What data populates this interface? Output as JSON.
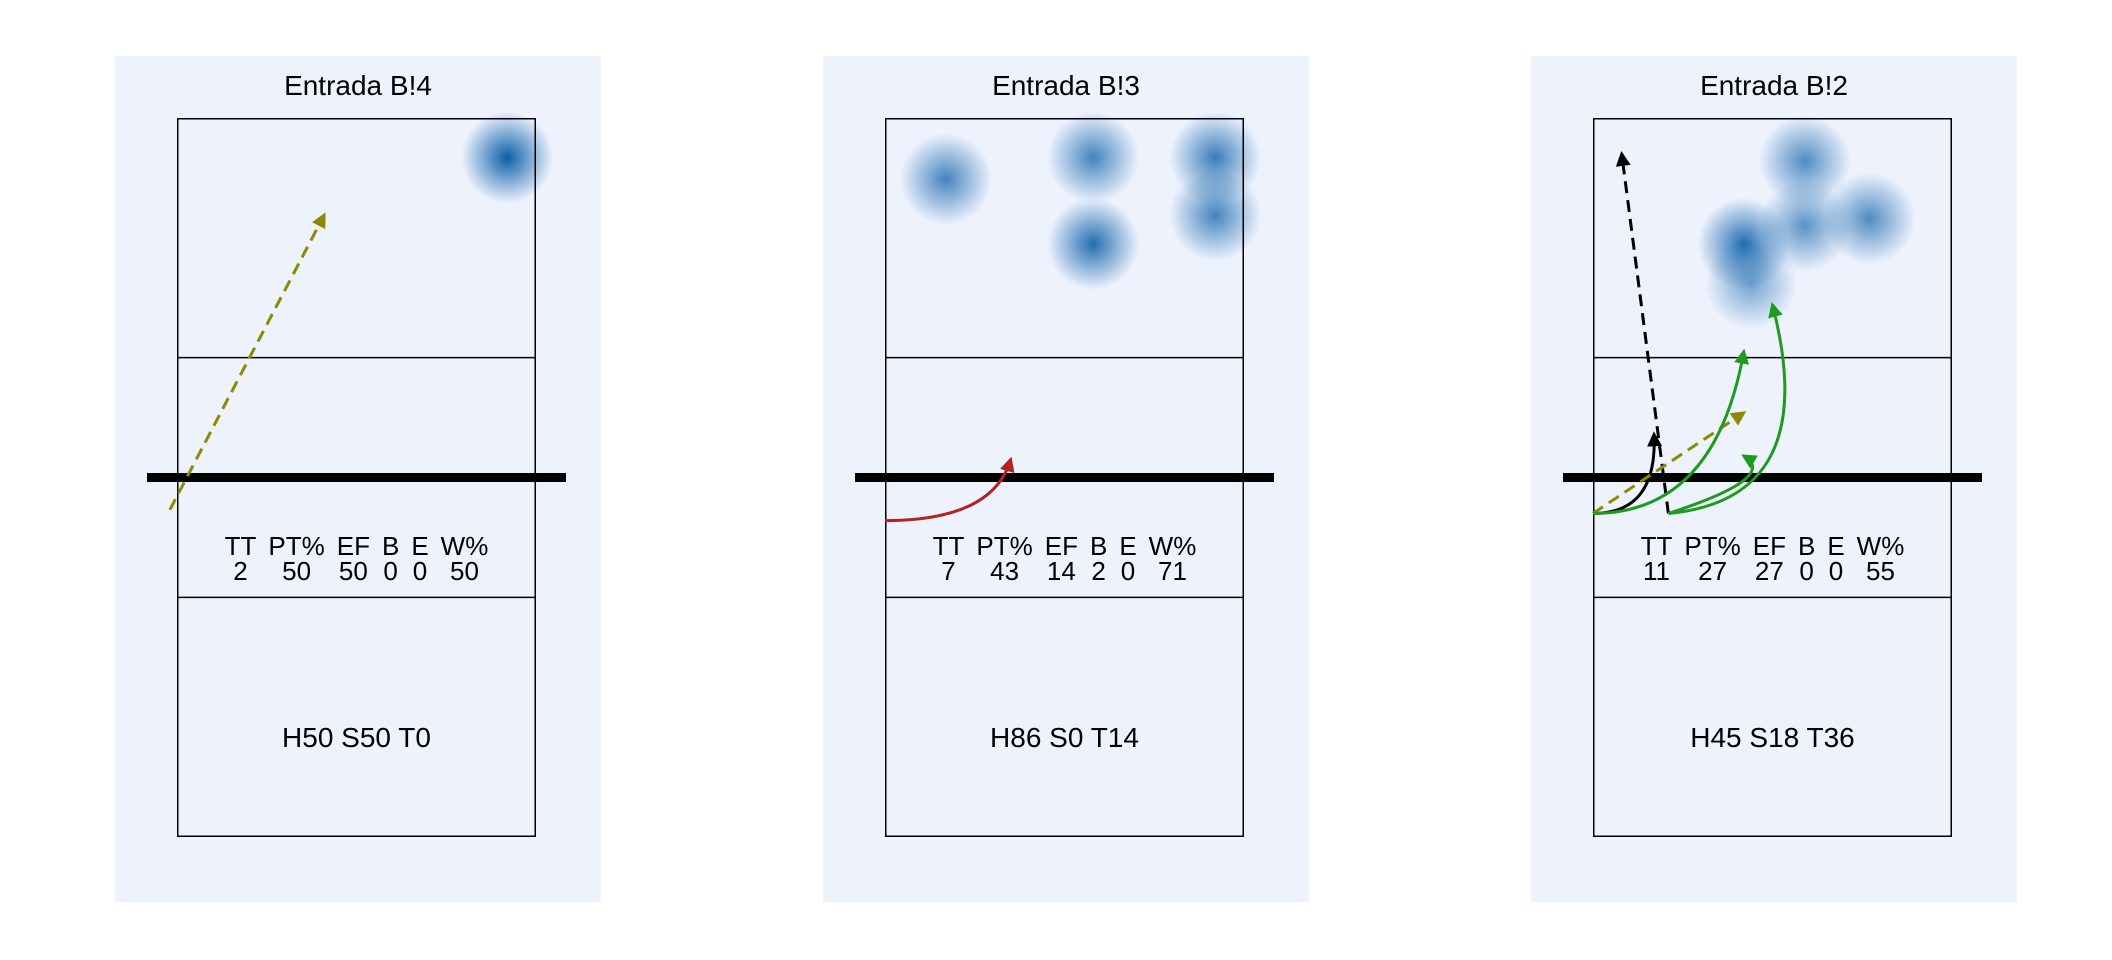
{
  "colors": {
    "panel_bg": "#edf2fd",
    "heat": "#0b5fa8",
    "arrow_olive": "#8b8b00",
    "arrow_red": "#b22222",
    "arrow_green": "#1e9a1e",
    "arrow_black": "#000000"
  },
  "stat_headers": [
    "TT",
    "PT%",
    "EF",
    "B",
    "E",
    "W%"
  ],
  "panels": [
    {
      "title": "Entrada B!4",
      "stats": [
        "2",
        "50",
        "50",
        "0",
        "0",
        "50"
      ],
      "summary": "H50 S50 T0",
      "heat": [
        [
          0.92,
          0.11,
          1.0
        ]
      ],
      "arrows": [
        {
          "color": "olive",
          "dashed": true,
          "pts": [
            [
              -0.02,
              1.09
            ],
            [
              0.41,
              0.27
            ]
          ]
        }
      ]
    },
    {
      "title": "Entrada B!3",
      "stats": [
        "7",
        "43",
        "14",
        "2",
        "0",
        "71"
      ],
      "summary": "H86 S0 T14",
      "heat": [
        [
          0.17,
          0.17,
          0.75
        ],
        [
          0.58,
          0.11,
          0.75
        ],
        [
          0.58,
          0.35,
          0.9
        ],
        [
          0.92,
          0.11,
          0.8
        ],
        [
          0.92,
          0.27,
          0.75
        ]
      ],
      "arrows": [
        {
          "color": "red",
          "dashed": false,
          "pts": [
            [
              0.0,
              1.12
            ],
            [
              0.3,
              1.12
            ],
            [
              0.35,
              0.95
            ]
          ]
        }
      ]
    },
    {
      "title": "Entrada B!2",
      "stats": [
        "11",
        "27",
        "27",
        "0",
        "0",
        "55"
      ],
      "summary": "H45 S18 T36",
      "heat": [
        [
          0.59,
          0.12,
          0.7
        ],
        [
          0.42,
          0.35,
          0.9
        ],
        [
          0.59,
          0.3,
          0.65
        ],
        [
          0.77,
          0.28,
          0.7
        ],
        [
          0.44,
          0.46,
          0.55
        ]
      ],
      "arrows": [
        {
          "color": "black",
          "dashed": true,
          "pts": [
            [
              0.21,
              1.1
            ],
            [
              0.08,
              0.1
            ]
          ]
        },
        {
          "color": "black",
          "dashed": false,
          "pts": [
            [
              0.0,
              1.1
            ],
            [
              0.18,
              1.1
            ],
            [
              0.17,
              0.88
            ]
          ]
        },
        {
          "color": "olive",
          "dashed": true,
          "pts": [
            [
              0.0,
              1.1
            ],
            [
              0.42,
              0.82
            ]
          ]
        },
        {
          "color": "green",
          "dashed": false,
          "pts": [
            [
              0.0,
              1.1
            ],
            [
              0.34,
              1.1
            ],
            [
              0.42,
              0.65
            ]
          ]
        },
        {
          "color": "green",
          "dashed": false,
          "pts": [
            [
              0.21,
              1.1
            ],
            [
              0.52,
              1.0
            ],
            [
              0.42,
              0.94
            ]
          ]
        },
        {
          "color": "green",
          "dashed": false,
          "pts": [
            [
              0.21,
              1.1
            ],
            [
              0.64,
              1.06
            ],
            [
              0.5,
              0.52
            ]
          ]
        }
      ]
    }
  ]
}
